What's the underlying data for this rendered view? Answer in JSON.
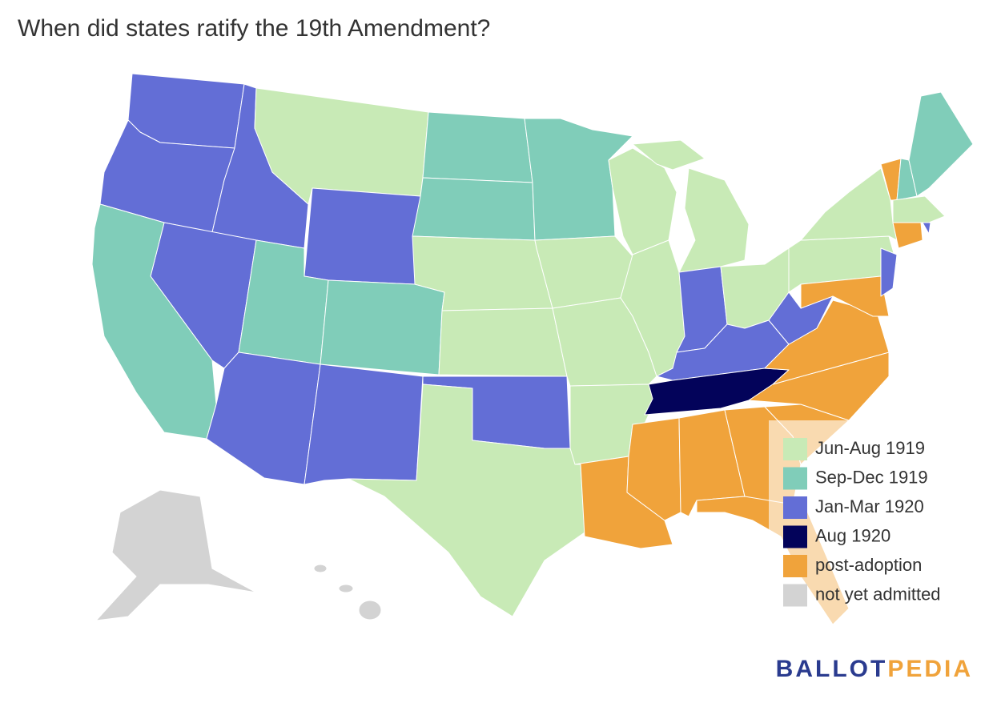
{
  "title": "When did states ratify the 19th Amendment?",
  "legend": [
    {
      "label": "Jun-Aug 1919",
      "color": "#c8eab6"
    },
    {
      "label": "Sep-Dec 1919",
      "color": "#80cdb9"
    },
    {
      "label": "Jan-Mar 1920",
      "color": "#636ed6"
    },
    {
      "label": "Aug 1920",
      "color": "#03035a"
    },
    {
      "label": "post-adoption",
      "color": "#f0a33b"
    },
    {
      "label": "not yet admitted",
      "color": "#d3d3d3"
    }
  ],
  "logo": {
    "part1": "BALLOT",
    "part2": "PEDIA"
  }
}
